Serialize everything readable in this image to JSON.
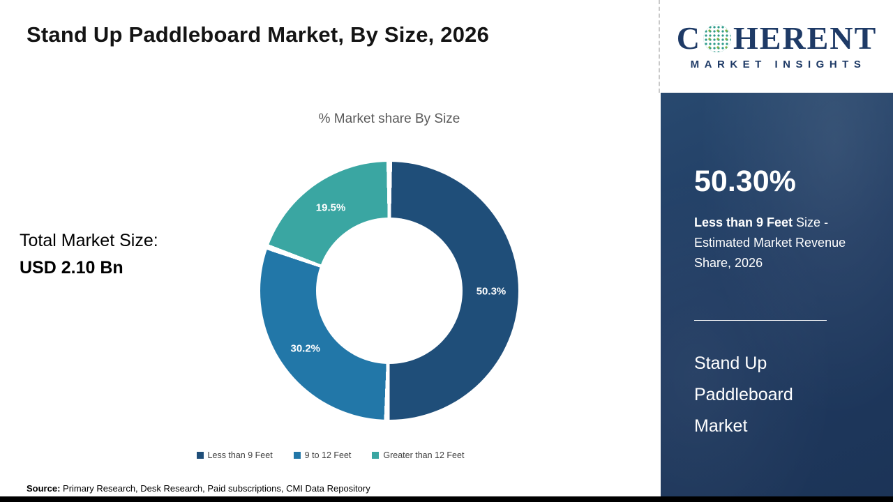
{
  "header": {
    "title": "Stand Up Paddleboard Market, By Size, 2026"
  },
  "logo": {
    "name_prefix": "C",
    "name_suffix": "HERENT",
    "subtitle": "MARKET INSIGHTS"
  },
  "left_panel": {
    "total_label": "Total Market Size:",
    "total_value": "USD 2.10 Bn"
  },
  "chart_data": {
    "type": "pie",
    "donut": true,
    "title": "% Market share By Size",
    "categories": [
      "Less than 9 Feet",
      "9 to 12 Feet",
      "Greater than 12 Feet"
    ],
    "values": [
      50.3,
      30.2,
      19.5
    ],
    "data_labels": [
      "50.3%",
      "30.2%",
      "19.5%"
    ],
    "colors": [
      "#1f4e79",
      "#2277a8",
      "#3aa6a2"
    ],
    "start_angle_deg": 0,
    "direction": "clockwise",
    "legend_position": "bottom"
  },
  "sidebar": {
    "stat_value": "50.30%",
    "stat_desc_bold": "Less than 9 Feet",
    "stat_desc_rest": " Size - Estimated Market Revenue Share, 2026",
    "market_name_lines": [
      "Stand Up",
      "Paddleboard",
      "Market"
    ]
  },
  "footer": {
    "source_label": "Source:",
    "source_text": " Primary Research, Desk Research, Paid subscriptions, CMI Data Repository"
  }
}
